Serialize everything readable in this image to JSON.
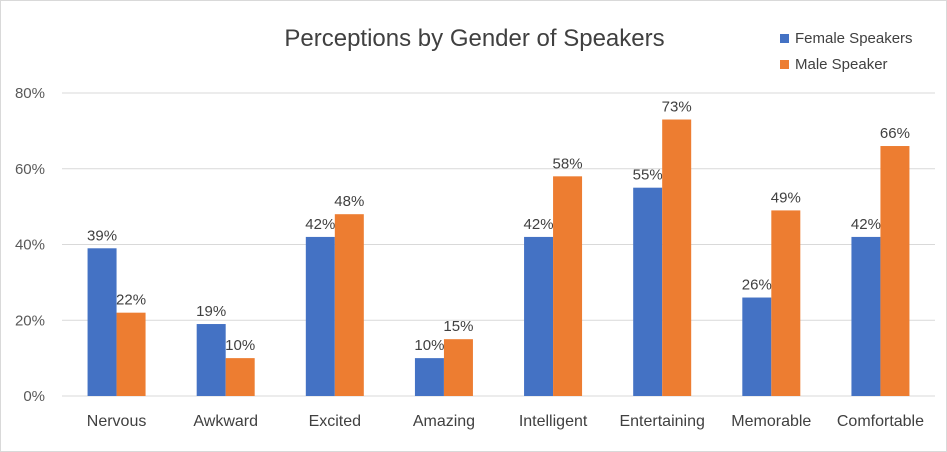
{
  "chart_data": {
    "type": "bar",
    "title": "Perceptions by Gender of Speakers",
    "categories": [
      "Nervous",
      "Awkward",
      "Excited",
      "Amazing",
      "Intelligent",
      "Entertaining",
      "Memorable",
      "Comfortable"
    ],
    "series": [
      {
        "name": "Female Speakers",
        "color": "#4472c4",
        "values": [
          39,
          19,
          42,
          10,
          42,
          55,
          26,
          42
        ],
        "labels": [
          "39%",
          "19%",
          "42%",
          "10%",
          "42%",
          "55%",
          "26%",
          "42%"
        ]
      },
      {
        "name": "Male Speaker",
        "color": "#ed7d31",
        "values": [
          22,
          10,
          48,
          15,
          58,
          73,
          49,
          66
        ],
        "labels": [
          "22%",
          "10%",
          "48%",
          "15%",
          "58%",
          "73%",
          "49%",
          "66%"
        ]
      }
    ],
    "yticks": [
      "0%",
      "20%",
      "40%",
      "60%",
      "80%"
    ],
    "ylim": [
      0,
      80
    ],
    "grid": true,
    "legend_position": "top-right",
    "gridline_color": "#d9d9d9"
  }
}
